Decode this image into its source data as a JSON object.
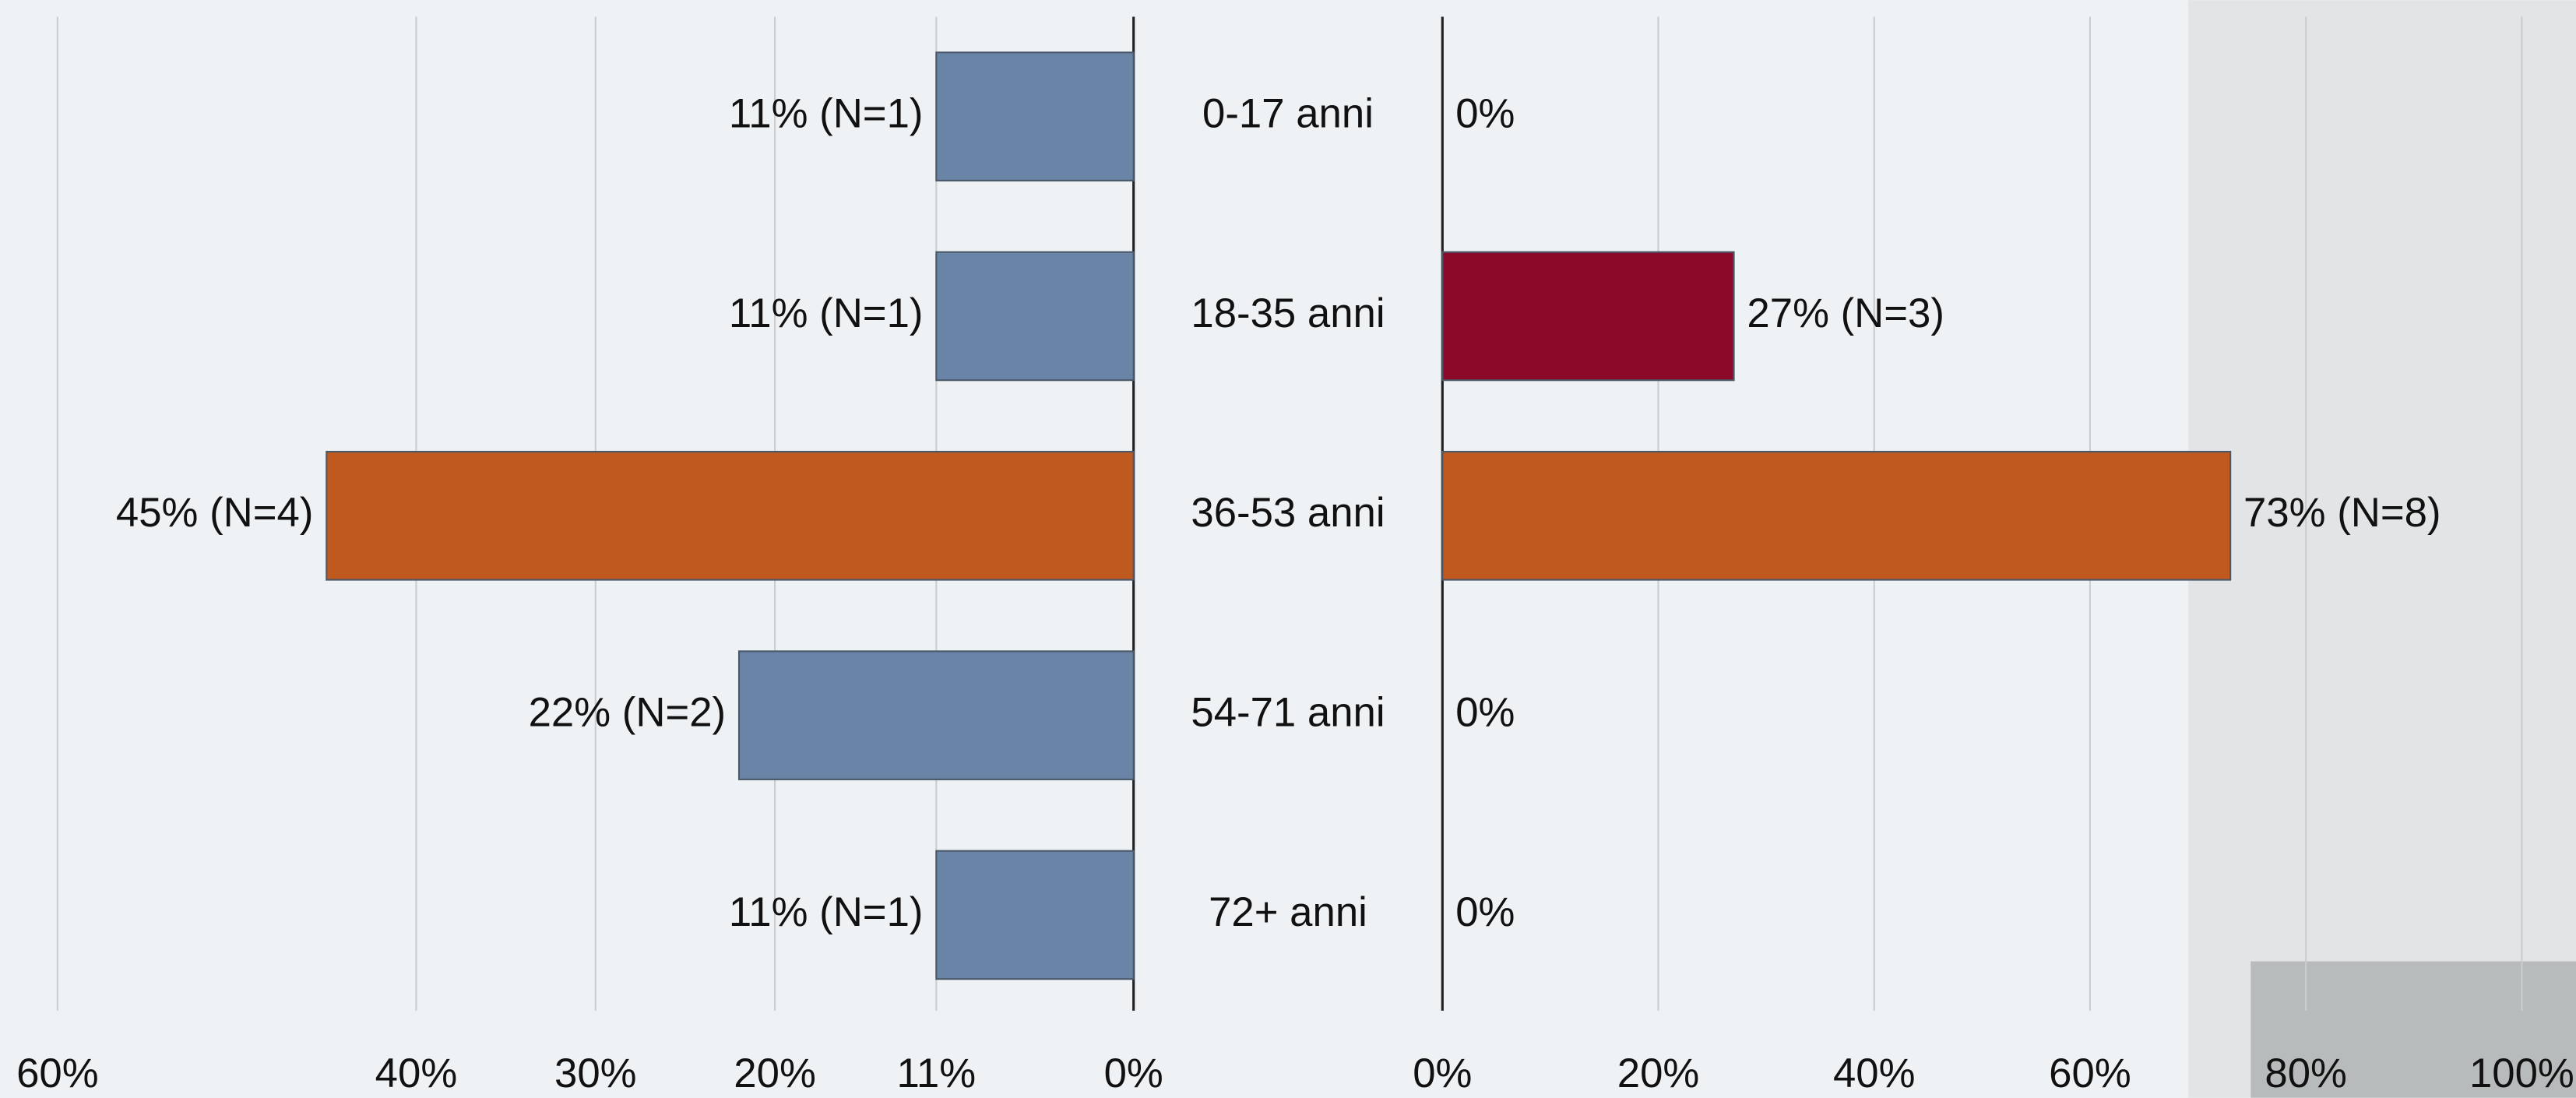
{
  "chart_data": {
    "type": "bar",
    "orientation": "horizontal",
    "categories": [
      "0-17 anni",
      "18-35 anni",
      "36-53 anni",
      "54-71 anni",
      "72+ anni"
    ],
    "series": [
      {
        "side": "left",
        "values": [
          11,
          11,
          45,
          22,
          11
        ],
        "value_labels": [
          "11% (N=1)",
          "11% (N=1)",
          "45% (N=4)",
          "22% (N=2)",
          "11% (N=1)"
        ],
        "colors": [
          "#6a84a8",
          "#6a84a8",
          "#c0591f",
          "#6a84a8",
          "#6a84a8"
        ],
        "xlim": [
          0,
          60
        ],
        "xticks": [
          {
            "value": 60,
            "label": "60%"
          },
          {
            "value": 40,
            "label": "40%"
          },
          {
            "value": 30,
            "label": "30%"
          },
          {
            "value": 20,
            "label": "20%"
          },
          {
            "value": 11,
            "label": "11%"
          },
          {
            "value": 0,
            "label": "0%"
          }
        ]
      },
      {
        "side": "right",
        "values": [
          0,
          27,
          73,
          0,
          0
        ],
        "value_labels": [
          "0%",
          "27% (N=3)",
          "73% (N=8)",
          "0%",
          "0%"
        ],
        "colors": [
          "#8b0a2a",
          "#8b0a2a",
          "#c0591f",
          "#8b0a2a",
          "#8b0a2a"
        ],
        "xlim": [
          0,
          100
        ],
        "xticks": [
          {
            "value": 0,
            "label": "0%"
          },
          {
            "value": 20,
            "label": "20%"
          },
          {
            "value": 40,
            "label": "40%"
          },
          {
            "value": 60,
            "label": "60%"
          },
          {
            "value": 80,
            "label": "80%"
          },
          {
            "value": 100,
            "label": "100%"
          }
        ]
      }
    ],
    "grid": true
  }
}
